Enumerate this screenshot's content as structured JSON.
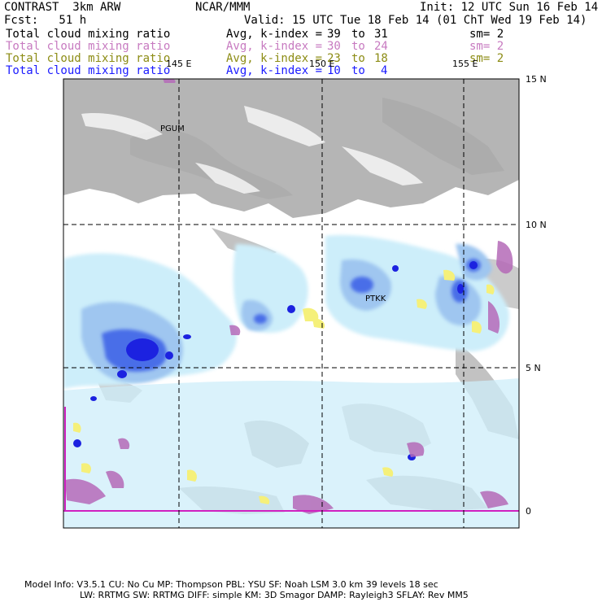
{
  "header": {
    "left1": "CONTRAST  3km ARW",
    "center1": "NCAR/MMM",
    "right1": "Init: 12 UTC Sun 16 Feb 14",
    "left2": "Fcst:   51 h",
    "center2": "Valid: 15 UTC Tue 18 Feb 14 (01 ChT Wed 19 Feb 14)"
  },
  "fields": [
    {
      "name": "Total cloud mixing ratio",
      "avg": "Avg, k-index =",
      "from": "39",
      "to_word": "to",
      "to": "31",
      "sm": "sm= 2",
      "color": "#000000"
    },
    {
      "name": "Total cloud mixing ratio",
      "avg": "Avg, k-index =",
      "from": "30",
      "to_word": "to",
      "to": "24",
      "sm": "sm= 2",
      "color": "#c77ac0"
    },
    {
      "name": "Total cloud mixing ratio",
      "avg": "Avg, k-index =",
      "from": "23",
      "to_word": "to",
      "to": "18",
      "sm": "sm= 2",
      "color": "#8c8c14"
    },
    {
      "name": "Total cloud mixing ratio",
      "avg": "Avg, k-index =",
      "from": "10",
      "to_word": "to",
      "to": "4",
      "sm": "",
      "color": "#1a1aff"
    }
  ],
  "axes": {
    "lon_labels": [
      "145 E",
      "150 E",
      "155 E"
    ],
    "lat_labels": [
      "15 N",
      "10 N",
      "5 N",
      "0"
    ]
  },
  "stations": [
    "PGUM",
    "PTKK"
  ],
  "footer": {
    "line1": "Model Info: V3.5.1    CU: No Cu    MP: Thompson    PBL: YSU     SF: Noah LSM     3.0 km   39 levels   18 sec",
    "line2": "LW: RRTMG    SW: RRTMG   DIFF: simple KM: 3D Smagor DAMP: Rayleigh3  SFLAY: Rev MM5"
  }
}
